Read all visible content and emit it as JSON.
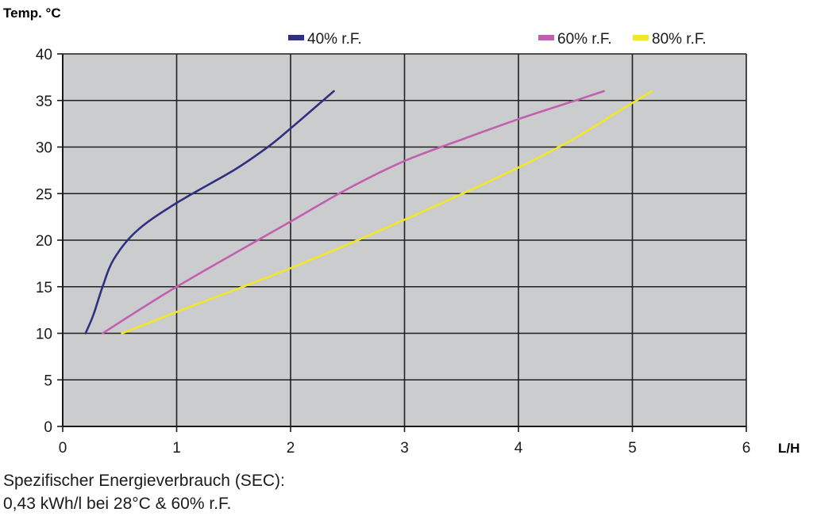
{
  "chart_data": {
    "type": "line",
    "title": "",
    "ylabel": "Temp. °C",
    "xlabel": "L/H",
    "xlim": [
      0,
      6
    ],
    "ylim": [
      0,
      40
    ],
    "xticks": [
      "0",
      "1",
      "2",
      "3",
      "4",
      "5",
      "6"
    ],
    "yticks": [
      "0",
      "5",
      "10",
      "15",
      "20",
      "25",
      "30",
      "35",
      "40"
    ],
    "grid": true,
    "legend_position": "top",
    "series": [
      {
        "name": "40% r.F.",
        "color": "#2e3180",
        "points": [
          [
            0.2,
            10
          ],
          [
            0.27,
            12
          ],
          [
            0.35,
            15
          ],
          [
            0.45,
            18
          ],
          [
            0.65,
            21
          ],
          [
            1.0,
            24
          ],
          [
            1.5,
            27.5
          ],
          [
            1.8,
            30
          ],
          [
            2.0,
            32
          ],
          [
            2.38,
            36
          ]
        ]
      },
      {
        "name": "60% r.F.",
        "color": "#c260b0",
        "points": [
          [
            0.35,
            10
          ],
          [
            1.0,
            15
          ],
          [
            2.0,
            22
          ],
          [
            2.5,
            25.5
          ],
          [
            3.0,
            28.5
          ],
          [
            3.5,
            30.8
          ],
          [
            4.0,
            33
          ],
          [
            4.5,
            35
          ],
          [
            4.75,
            36
          ]
        ]
      },
      {
        "name": "80% r.F.",
        "color": "#f2e62a",
        "points": [
          [
            0.52,
            10
          ],
          [
            1.0,
            12.3
          ],
          [
            2.0,
            17
          ],
          [
            3.0,
            22.2
          ],
          [
            4.0,
            27.8
          ],
          [
            4.5,
            31
          ],
          [
            4.9,
            34
          ],
          [
            5.17,
            36
          ]
        ]
      }
    ]
  },
  "footer": {
    "line1": "Spezifischer Energieverbrauch (SEC):",
    "line2": "0,43 kWh/l bei 28°C & 60% r.F."
  }
}
